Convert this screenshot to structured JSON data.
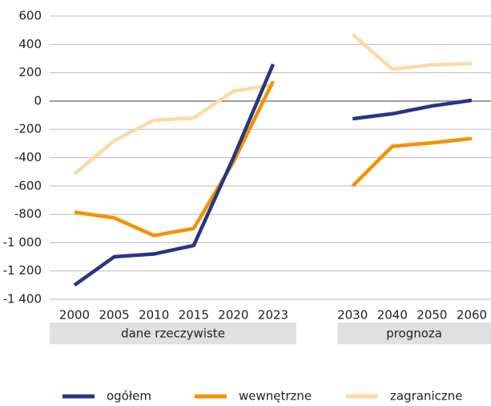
{
  "chart_data": {
    "type": "line",
    "categories": [
      "2000",
      "2005",
      "2010",
      "2015",
      "2020",
      "2023",
      null,
      "2030",
      "2040",
      "2050",
      "2060"
    ],
    "series": [
      {
        "name": "ogółem",
        "color": "#283583",
        "values": [
          -1300,
          -1100,
          -1080,
          -1020,
          -400,
          260,
          null,
          -125,
          -90,
          -35,
          5
        ]
      },
      {
        "name": "wewnętrzne",
        "color": "#f39200",
        "values": [
          -785,
          -825,
          -950,
          -900,
          -430,
          140,
          null,
          -600,
          -320,
          -295,
          -265
        ]
      },
      {
        "name": "zagraniczne",
        "color": "#fdd9a8",
        "values": [
          -515,
          -280,
          -135,
          -120,
          70,
          115,
          null,
          470,
          225,
          255,
          265
        ]
      }
    ],
    "groups": [
      {
        "label": "dane rzeczywiste",
        "from": "2000",
        "to": "2023"
      },
      {
        "label": "prognoza",
        "from": "2030",
        "to": "2060"
      }
    ],
    "ylim": [
      -1400,
      600
    ],
    "yticks": [
      {
        "value": -1400,
        "label": "-1 400"
      },
      {
        "value": -1200,
        "label": "-1 200"
      },
      {
        "value": -1000,
        "label": "-1 000"
      },
      -800,
      -600,
      -400,
      -200,
      0,
      200,
      400,
      600
    ],
    "grid": true,
    "legend": "bottom"
  }
}
